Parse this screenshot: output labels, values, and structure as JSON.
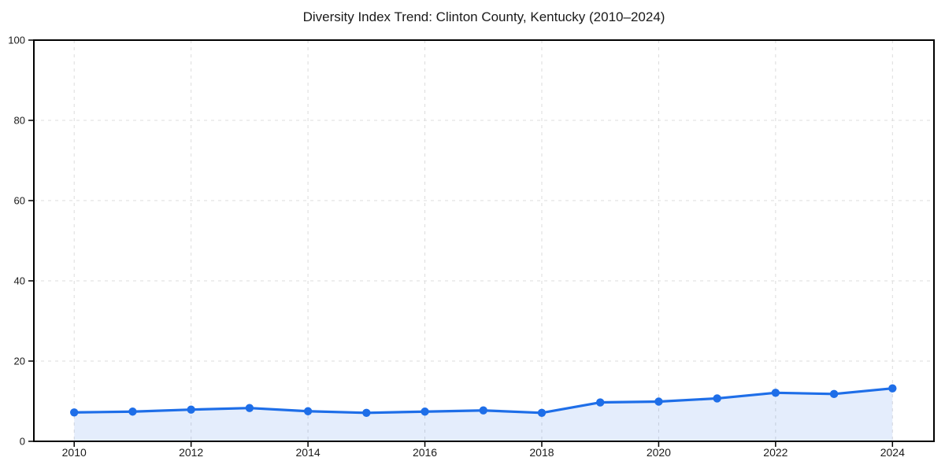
{
  "page": {
    "background_color": "#ffffff"
  },
  "chart_data": {
    "type": "line",
    "title": "Diversity Index Trend: Clinton County, Kentucky (2010–2024)",
    "x": [
      2010,
      2011,
      2012,
      2013,
      2014,
      2015,
      2016,
      2017,
      2018,
      2019,
      2020,
      2021,
      2022,
      2023,
      2024
    ],
    "series": [
      {
        "name": "Diversity Index",
        "values": [
          7.2,
          7.4,
          7.9,
          8.3,
          7.5,
          7.1,
          7.4,
          7.7,
          7.1,
          9.7,
          9.9,
          10.7,
          12.1,
          11.8,
          13.2
        ]
      }
    ],
    "xlabel": "",
    "ylabel": "",
    "xlim": [
      2009.31,
      2024.71
    ],
    "ylim": [
      0,
      100
    ],
    "xticks": [
      2010,
      2012,
      2014,
      2016,
      2018,
      2020,
      2022,
      2024
    ],
    "yticks": [
      0,
      20,
      40,
      60,
      80,
      100
    ],
    "grid": true,
    "grid_style": "dashed",
    "legend_position": "none",
    "line_color": "#1e6ee8",
    "marker": "circle",
    "marker_radius": 5.2,
    "line_width": 3.2,
    "fill_color": "rgba(30, 110, 232, 0.12)",
    "grid_color": "#dcdcdc",
    "spine_color": "#000000",
    "tick_color": "#000000",
    "text_color": "#1a1a1a"
  }
}
